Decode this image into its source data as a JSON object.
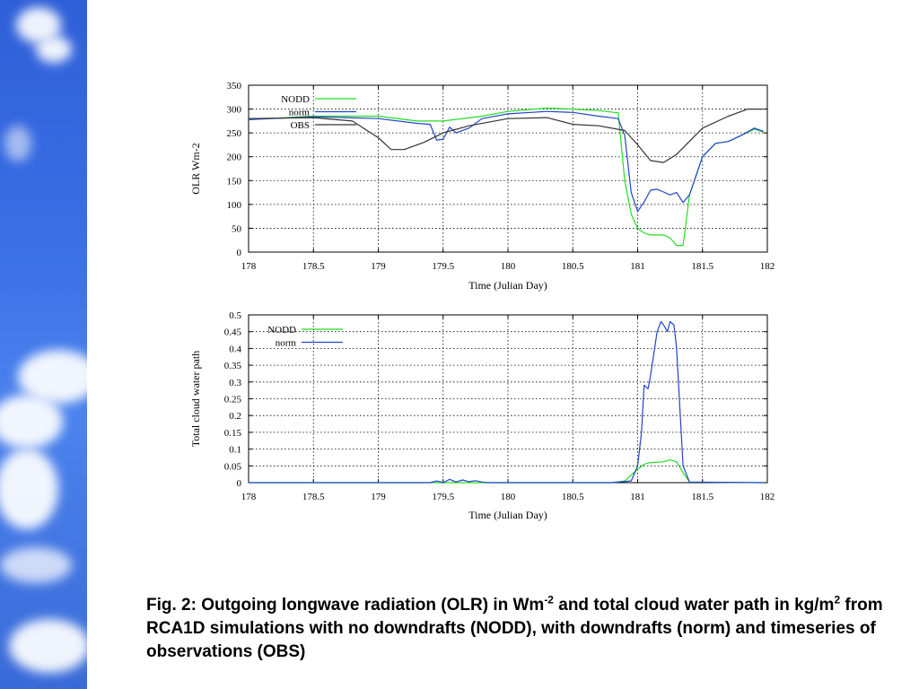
{
  "chart_data": [
    {
      "type": "line",
      "xlabel": "Time (Julian Day)",
      "ylabel": "OLR  Wm-2",
      "xlim": [
        178,
        182
      ],
      "ylim": [
        0,
        350
      ],
      "xticks": [
        "178",
        "178.5",
        "179",
        "179.5",
        "180",
        "180.5",
        "181",
        "181.5",
        "182"
      ],
      "yticks": [
        "0",
        "50",
        "100",
        "150",
        "200",
        "250",
        "300",
        "350"
      ],
      "grid": true,
      "legend_position": "top-left",
      "series": [
        {
          "name": "NODD",
          "color": "#22dd22",
          "x": [
            178,
            178.5,
            179,
            179.3,
            179.5,
            179.8,
            180,
            180.3,
            180.5,
            180.7,
            180.85,
            180.9,
            180.95,
            181,
            181.05,
            181.1,
            181.2,
            181.25,
            181.3,
            181.35,
            181.4,
            181.5,
            181.6,
            181.7,
            181.8,
            181.9,
            181.97
          ],
          "y": [
            278,
            285,
            285,
            275,
            275,
            285,
            295,
            302,
            300,
            297,
            292,
            150,
            80,
            50,
            40,
            36,
            36,
            30,
            14,
            14,
            120,
            200,
            228,
            232,
            245,
            258,
            252
          ]
        },
        {
          "name": "norm",
          "color": "#2244cc",
          "x": [
            178,
            178.5,
            179,
            179.3,
            179.4,
            179.45,
            179.5,
            179.55,
            179.6,
            179.7,
            179.8,
            180,
            180.3,
            180.5,
            180.7,
            180.85,
            180.9,
            180.95,
            181,
            181.05,
            181.1,
            181.15,
            181.2,
            181.25,
            181.3,
            181.35,
            181.4,
            181.5,
            181.6,
            181.7,
            181.8,
            181.9,
            181.97
          ],
          "y": [
            278,
            284,
            280,
            270,
            268,
            235,
            237,
            262,
            250,
            260,
            280,
            290,
            295,
            293,
            285,
            280,
            245,
            125,
            85,
            105,
            130,
            132,
            126,
            120,
            125,
            104,
            120,
            200,
            228,
            232,
            245,
            260,
            253
          ]
        },
        {
          "name": "OBS",
          "color": "#333333",
          "x": [
            178,
            178.5,
            178.8,
            179,
            179.1,
            179.2,
            179.35,
            179.5,
            179.7,
            180,
            180.3,
            180.5,
            180.7,
            180.9,
            181,
            181.1,
            181.2,
            181.3,
            181.5,
            181.7,
            181.85,
            181.97
          ],
          "y": [
            280,
            282,
            275,
            240,
            215,
            215,
            230,
            250,
            265,
            280,
            282,
            268,
            265,
            255,
            225,
            192,
            188,
            205,
            260,
            285,
            300,
            300
          ]
        }
      ]
    },
    {
      "type": "line",
      "xlabel": "Time (Julian Day)",
      "ylabel": "Total cloud water path",
      "xlim": [
        178,
        182
      ],
      "ylim": [
        0,
        0.5
      ],
      "xticks": [
        "178",
        "178.5",
        "179",
        "179.5",
        "180",
        "180.5",
        "181",
        "181.5",
        "182"
      ],
      "yticks": [
        "0",
        "0.05",
        "0.1",
        "0.15",
        "0.2",
        "0.25",
        "0.3",
        "0.35",
        "0.4",
        "0.45",
        "0.5"
      ],
      "grid": true,
      "legend_position": "top-left",
      "series": [
        {
          "name": "NODD",
          "color": "#22dd22",
          "x": [
            178,
            180.8,
            180.9,
            181,
            181.05,
            181.1,
            181.2,
            181.25,
            181.3,
            181.35,
            181.4,
            181.97
          ],
          "y": [
            0,
            0,
            0.005,
            0.04,
            0.055,
            0.06,
            0.062,
            0.068,
            0.062,
            0.03,
            0.002,
            0
          ]
        },
        {
          "name": "norm",
          "color": "#2244cc",
          "x": [
            178,
            179.4,
            179.45,
            179.5,
            179.55,
            179.6,
            179.65,
            179.7,
            179.75,
            179.8,
            179.85,
            180.8,
            180.95,
            181,
            181.03,
            181.05,
            181.08,
            181.1,
            181.15,
            181.18,
            181.2,
            181.23,
            181.25,
            181.28,
            181.3,
            181.35,
            181.4,
            181.97
          ],
          "y": [
            0,
            0,
            0.005,
            0,
            0.01,
            0.002,
            0.008,
            0.003,
            0.006,
            0.002,
            0,
            0,
            0.005,
            0.05,
            0.15,
            0.29,
            0.28,
            0.32,
            0.45,
            0.48,
            0.47,
            0.45,
            0.48,
            0.47,
            0.4,
            0.05,
            0.002,
            0
          ]
        }
      ]
    }
  ],
  "caption": {
    "part1": "Fig. 2: Outgoing longwave radiation (OLR) in Wm",
    "sup1": "-2",
    "part2": " and total cloud water path in kg/m",
    "sup2": "2",
    "part3": " from RCA1D simulations with no downdrafts (NODD), with downdrafts (norm) and timeseries of observations (OBS)"
  }
}
